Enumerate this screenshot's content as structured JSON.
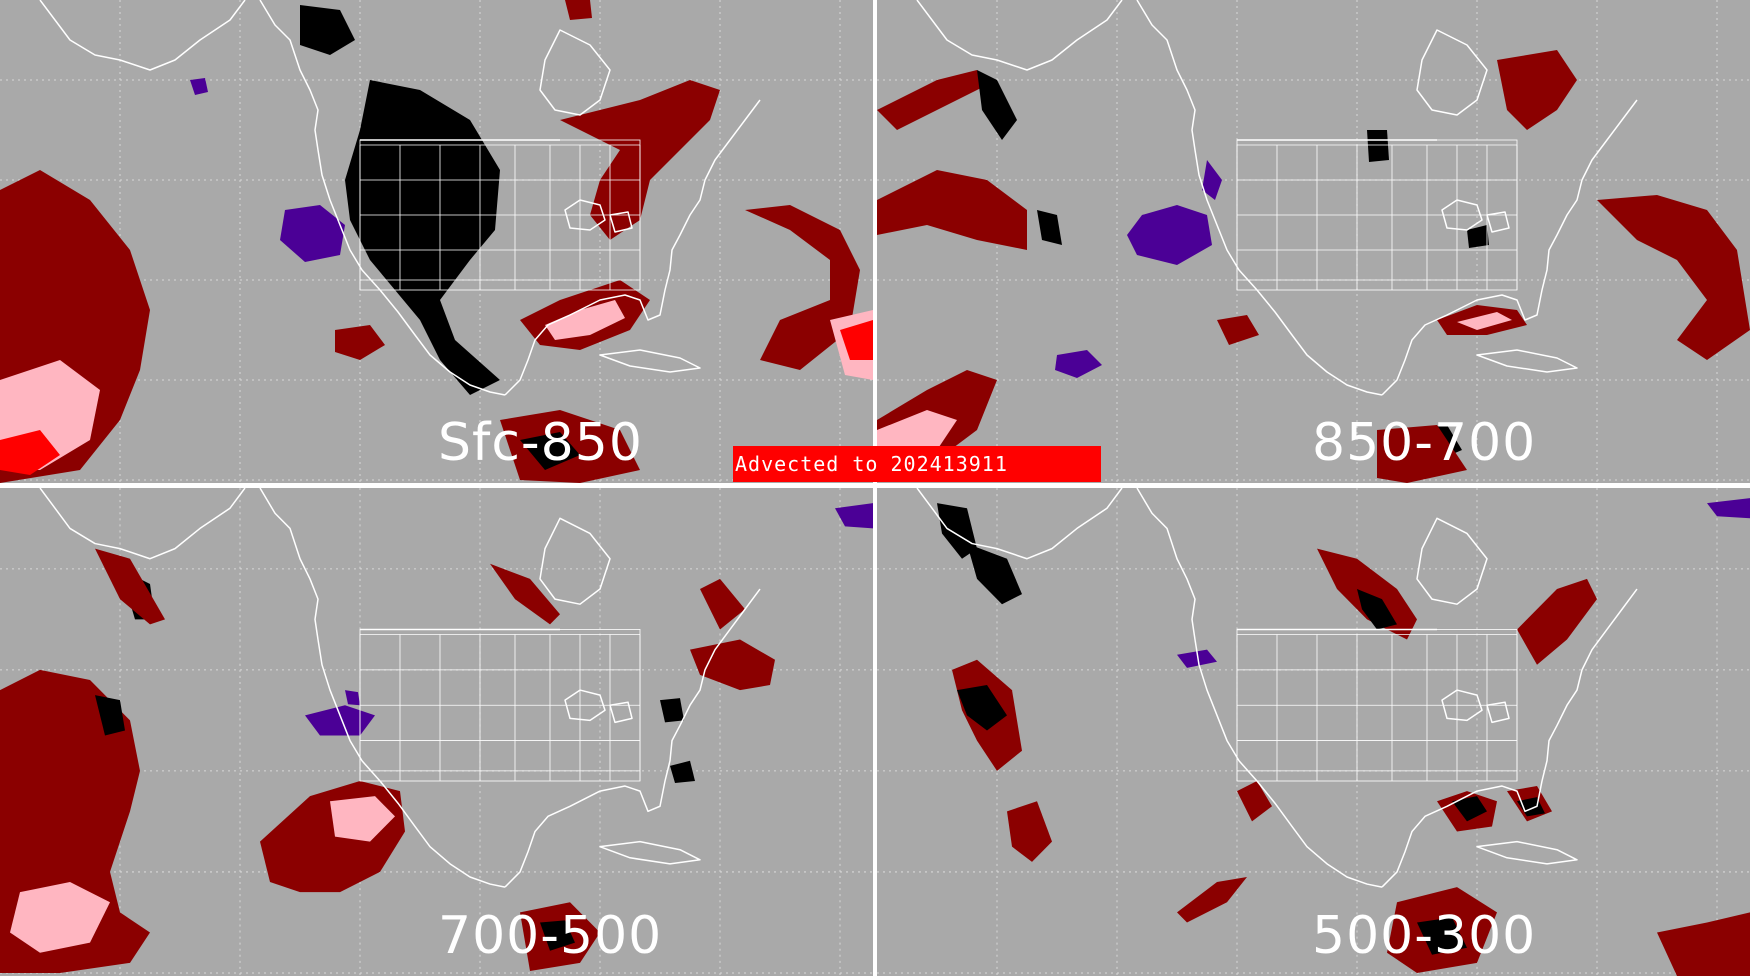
{
  "banner": {
    "prefix": "Advected to",
    "timestamp": "202413911"
  },
  "colors": {
    "background": "#a9a9a9",
    "gridline": "#d8d8d8",
    "boundaries": "#ffffff",
    "dark_red": "#8b0000",
    "light_pink": "#ffb6c1",
    "red": "#ff0000",
    "black": "#000000",
    "purple": "#4b0096",
    "banner": "#ff0000"
  },
  "panels": [
    {
      "id": "sfc-850",
      "label": "Sfc-850"
    },
    {
      "id": "850-700",
      "label": "850-700"
    },
    {
      "id": "700-500",
      "label": "700-500"
    },
    {
      "id": "500-300",
      "label": "500-300"
    }
  ]
}
